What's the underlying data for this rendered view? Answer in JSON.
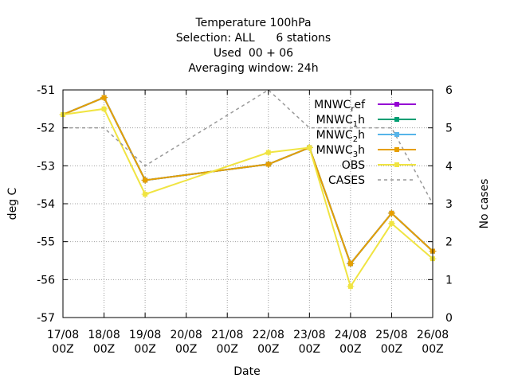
{
  "chart_data": {
    "type": "line",
    "title_lines": [
      "Temperature 100hPa",
      "Selection: ALL      6 stations",
      "Used  00 + 06",
      "Averaging window: 24h"
    ],
    "xlabel": "Date",
    "ylabel": "deg C",
    "y2label": "No cases",
    "x": [
      "17/08 00Z",
      "18/08 00Z",
      "19/08 00Z",
      "20/08 00Z",
      "21/08 00Z",
      "22/08 00Z",
      "23/08 00Z",
      "24/08 00Z",
      "25/08 00Z",
      "26/08 00Z"
    ],
    "x_tick_top": [
      "17/08",
      "18/08",
      "19/08",
      "20/08",
      "21/08",
      "22/08",
      "23/08",
      "24/08",
      "25/08",
      "26/08"
    ],
    "x_tick_bottom": [
      "00Z",
      "00Z",
      "00Z",
      "00Z",
      "00Z",
      "00Z",
      "00Z",
      "00Z",
      "00Z",
      "00Z"
    ],
    "ylim": [
      -57,
      -51
    ],
    "y_ticks": [
      "-57",
      "-56",
      "-55",
      "-54",
      "-53",
      "-52",
      "-51"
    ],
    "y2lim": [
      0,
      6
    ],
    "y2_ticks": [
      "0",
      "1",
      "2",
      "3",
      "4",
      "5",
      "6"
    ],
    "grid": true,
    "legend_position": "top-right",
    "series": [
      {
        "label_main": "MNWC",
        "label_sub": "r",
        "label_rest": "ef",
        "color": "#9400d3",
        "axis": "left",
        "marker": "square",
        "values": [
          -51.65,
          -51.2,
          -53.38,
          null,
          null,
          -52.96,
          -52.52,
          -55.58,
          -54.25,
          -55.25
        ]
      },
      {
        "label_main": "MNWC",
        "label_sub": "1",
        "label_rest": "h",
        "color": "#009e73",
        "axis": "left",
        "marker": "square",
        "values": [
          -51.65,
          -51.2,
          -53.38,
          null,
          null,
          -52.96,
          -52.52,
          -55.58,
          -54.25,
          -55.25
        ]
      },
      {
        "label_main": "MNWC",
        "label_sub": "2",
        "label_rest": "h",
        "color": "#56b4e9",
        "axis": "left",
        "marker": "square",
        "values": [
          -51.65,
          -51.2,
          -53.38,
          null,
          null,
          -52.96,
          -52.52,
          -55.58,
          -54.25,
          -55.25
        ]
      },
      {
        "label_main": "MNWC",
        "label_sub": "3",
        "label_rest": "h",
        "color": "#e69f00",
        "axis": "left",
        "marker": "square",
        "values": [
          -51.65,
          -51.2,
          -53.38,
          null,
          null,
          -52.96,
          -52.52,
          -55.58,
          -54.25,
          -55.25
        ]
      },
      {
        "label_main": "OBS",
        "label_sub": "",
        "label_rest": "",
        "color": "#f0e442",
        "axis": "left",
        "marker": "square",
        "values": [
          -51.65,
          -51.5,
          -53.75,
          null,
          null,
          -52.65,
          -52.52,
          -56.18,
          -54.52,
          -55.45
        ]
      },
      {
        "label_main": "CASES",
        "label_sub": "",
        "label_rest": "",
        "color": "#999999",
        "axis": "right",
        "marker": "none",
        "dashed": true,
        "values": [
          5,
          5,
          4,
          null,
          null,
          6,
          5,
          5,
          5,
          3
        ]
      }
    ]
  }
}
